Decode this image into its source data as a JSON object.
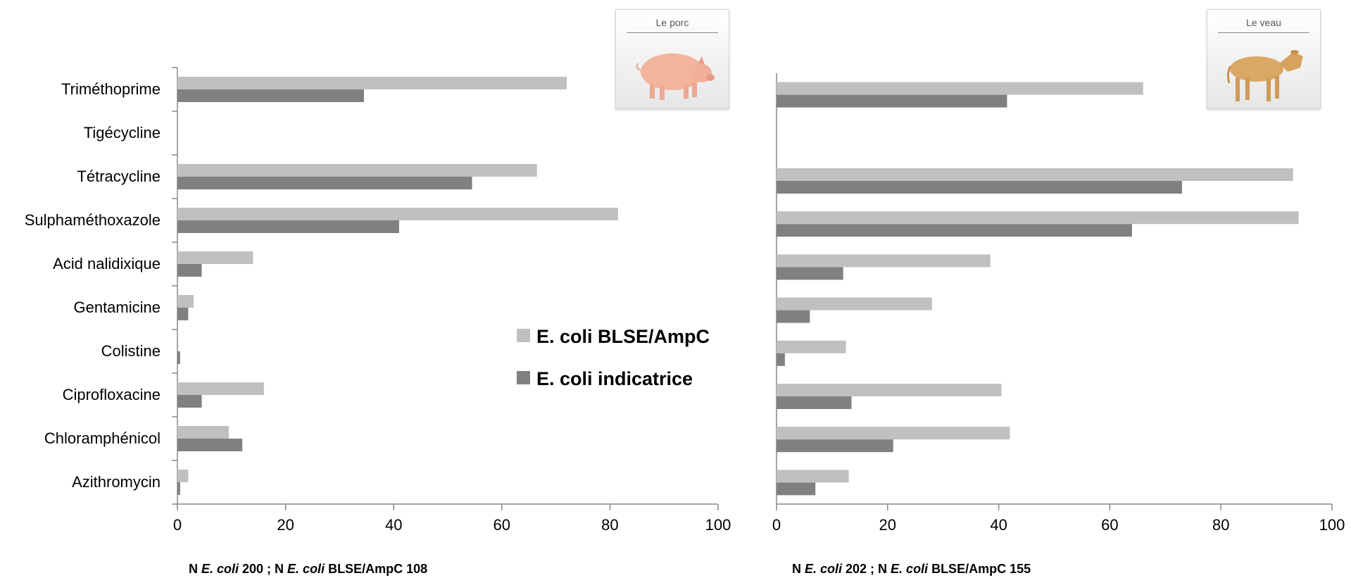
{
  "chart_data": [
    {
      "type": "bar",
      "orientation": "horizontal",
      "categories": [
        "Triméthoprime",
        "Tigécycline",
        "Tétracycline",
        "Sulphaméthoxazole",
        "Acid nalidixique",
        "Gentamicine",
        "Colistine",
        "Ciprofloxacine",
        "Chloramphénicol",
        "Azithromycin"
      ],
      "series": [
        {
          "name": "E. coli BLSE/AmpC",
          "color": "#c0c0c0",
          "values": [
            72,
            0,
            66.5,
            81.5,
            14,
            3,
            0,
            16,
            9.5,
            2
          ]
        },
        {
          "name": "E. coli indicatrice",
          "color": "#808080",
          "values": [
            34.5,
            0,
            54.5,
            41,
            4.5,
            2,
            0.5,
            4.5,
            12,
            0.5
          ]
        }
      ],
      "xlim": [
        0,
        100
      ],
      "xticks": [
        "0",
        "20",
        "40",
        "60",
        "80",
        "100"
      ],
      "animal_label": "Le porc",
      "footnote": {
        "p1": "N ",
        "i1": "E. coli",
        "p2": " 200 ; N ",
        "i2": "E. coli",
        "p3": " BLSE/AmpC 108"
      }
    },
    {
      "type": "bar",
      "orientation": "horizontal",
      "categories": [
        "Triméthoprime",
        "Tigécycline",
        "Tétracycline",
        "Sulphaméthoxazole",
        "Acid nalidixique",
        "Gentamicine",
        "Colistine",
        "Ciprofloxacine",
        "Chloramphénicol",
        "Azithromycin"
      ],
      "series": [
        {
          "name": "E. coli BLSE/AmpC",
          "color": "#c0c0c0",
          "values": [
            66,
            0,
            93,
            94,
            38.5,
            28,
            12.5,
            40.5,
            42,
            13
          ]
        },
        {
          "name": "E. coli indicatrice",
          "color": "#808080",
          "values": [
            41.5,
            0,
            73,
            64,
            12,
            6,
            1.5,
            13.5,
            21,
            7
          ]
        }
      ],
      "xlim": [
        0,
        100
      ],
      "xticks": [
        "0",
        "20",
        "40",
        "60",
        "80",
        "100"
      ],
      "animal_label": "Le veau",
      "footnote": {
        "p1": "N ",
        "i1": "E. coli",
        "p2": " 202 ; N ",
        "i2": "E. coli",
        "p3": " BLSE/AmpC 155"
      }
    }
  ],
  "legend": {
    "placement": "center",
    "items": [
      {
        "label": "E. coli BLSE/AmpC",
        "color": "#c0c0c0"
      },
      {
        "label": "E. coli indicatrice",
        "color": "#808080"
      }
    ]
  },
  "animals": {
    "pig": {
      "icon": "pig-icon"
    },
    "calf": {
      "icon": "calf-icon"
    }
  }
}
